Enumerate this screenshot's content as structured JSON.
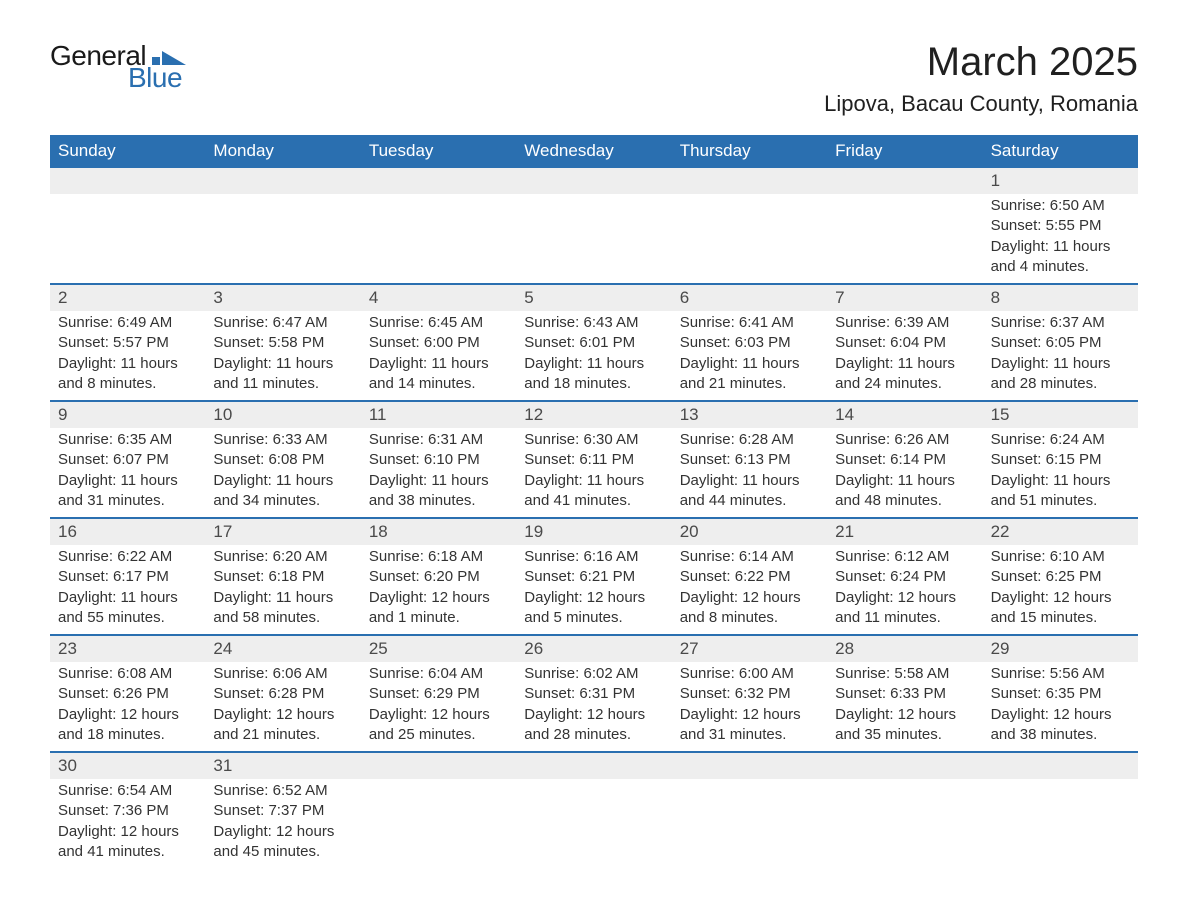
{
  "brand": {
    "top": "General",
    "bottom": "Blue",
    "shape_color": "#2a6fb0"
  },
  "title": "March 2025",
  "location": "Lipova, Bacau County, Romania",
  "colors": {
    "header_bg": "#2a6fb0",
    "header_text": "#ffffff",
    "daynum_bg": "#eeeeee",
    "row_border": "#2a6fb0",
    "body_text": "#333333",
    "page_bg": "#ffffff"
  },
  "weekdays": [
    "Sunday",
    "Monday",
    "Tuesday",
    "Wednesday",
    "Thursday",
    "Friday",
    "Saturday"
  ],
  "weeks": [
    [
      null,
      null,
      null,
      null,
      null,
      null,
      {
        "n": "1",
        "sunrise": "Sunrise: 6:50 AM",
        "sunset": "Sunset: 5:55 PM",
        "daylight1": "Daylight: 11 hours",
        "daylight2": "and 4 minutes."
      }
    ],
    [
      {
        "n": "2",
        "sunrise": "Sunrise: 6:49 AM",
        "sunset": "Sunset: 5:57 PM",
        "daylight1": "Daylight: 11 hours",
        "daylight2": "and 8 minutes."
      },
      {
        "n": "3",
        "sunrise": "Sunrise: 6:47 AM",
        "sunset": "Sunset: 5:58 PM",
        "daylight1": "Daylight: 11 hours",
        "daylight2": "and 11 minutes."
      },
      {
        "n": "4",
        "sunrise": "Sunrise: 6:45 AM",
        "sunset": "Sunset: 6:00 PM",
        "daylight1": "Daylight: 11 hours",
        "daylight2": "and 14 minutes."
      },
      {
        "n": "5",
        "sunrise": "Sunrise: 6:43 AM",
        "sunset": "Sunset: 6:01 PM",
        "daylight1": "Daylight: 11 hours",
        "daylight2": "and 18 minutes."
      },
      {
        "n": "6",
        "sunrise": "Sunrise: 6:41 AM",
        "sunset": "Sunset: 6:03 PM",
        "daylight1": "Daylight: 11 hours",
        "daylight2": "and 21 minutes."
      },
      {
        "n": "7",
        "sunrise": "Sunrise: 6:39 AM",
        "sunset": "Sunset: 6:04 PM",
        "daylight1": "Daylight: 11 hours",
        "daylight2": "and 24 minutes."
      },
      {
        "n": "8",
        "sunrise": "Sunrise: 6:37 AM",
        "sunset": "Sunset: 6:05 PM",
        "daylight1": "Daylight: 11 hours",
        "daylight2": "and 28 minutes."
      }
    ],
    [
      {
        "n": "9",
        "sunrise": "Sunrise: 6:35 AM",
        "sunset": "Sunset: 6:07 PM",
        "daylight1": "Daylight: 11 hours",
        "daylight2": "and 31 minutes."
      },
      {
        "n": "10",
        "sunrise": "Sunrise: 6:33 AM",
        "sunset": "Sunset: 6:08 PM",
        "daylight1": "Daylight: 11 hours",
        "daylight2": "and 34 minutes."
      },
      {
        "n": "11",
        "sunrise": "Sunrise: 6:31 AM",
        "sunset": "Sunset: 6:10 PM",
        "daylight1": "Daylight: 11 hours",
        "daylight2": "and 38 minutes."
      },
      {
        "n": "12",
        "sunrise": "Sunrise: 6:30 AM",
        "sunset": "Sunset: 6:11 PM",
        "daylight1": "Daylight: 11 hours",
        "daylight2": "and 41 minutes."
      },
      {
        "n": "13",
        "sunrise": "Sunrise: 6:28 AM",
        "sunset": "Sunset: 6:13 PM",
        "daylight1": "Daylight: 11 hours",
        "daylight2": "and 44 minutes."
      },
      {
        "n": "14",
        "sunrise": "Sunrise: 6:26 AM",
        "sunset": "Sunset: 6:14 PM",
        "daylight1": "Daylight: 11 hours",
        "daylight2": "and 48 minutes."
      },
      {
        "n": "15",
        "sunrise": "Sunrise: 6:24 AM",
        "sunset": "Sunset: 6:15 PM",
        "daylight1": "Daylight: 11 hours",
        "daylight2": "and 51 minutes."
      }
    ],
    [
      {
        "n": "16",
        "sunrise": "Sunrise: 6:22 AM",
        "sunset": "Sunset: 6:17 PM",
        "daylight1": "Daylight: 11 hours",
        "daylight2": "and 55 minutes."
      },
      {
        "n": "17",
        "sunrise": "Sunrise: 6:20 AM",
        "sunset": "Sunset: 6:18 PM",
        "daylight1": "Daylight: 11 hours",
        "daylight2": "and 58 minutes."
      },
      {
        "n": "18",
        "sunrise": "Sunrise: 6:18 AM",
        "sunset": "Sunset: 6:20 PM",
        "daylight1": "Daylight: 12 hours",
        "daylight2": "and 1 minute."
      },
      {
        "n": "19",
        "sunrise": "Sunrise: 6:16 AM",
        "sunset": "Sunset: 6:21 PM",
        "daylight1": "Daylight: 12 hours",
        "daylight2": "and 5 minutes."
      },
      {
        "n": "20",
        "sunrise": "Sunrise: 6:14 AM",
        "sunset": "Sunset: 6:22 PM",
        "daylight1": "Daylight: 12 hours",
        "daylight2": "and 8 minutes."
      },
      {
        "n": "21",
        "sunrise": "Sunrise: 6:12 AM",
        "sunset": "Sunset: 6:24 PM",
        "daylight1": "Daylight: 12 hours",
        "daylight2": "and 11 minutes."
      },
      {
        "n": "22",
        "sunrise": "Sunrise: 6:10 AM",
        "sunset": "Sunset: 6:25 PM",
        "daylight1": "Daylight: 12 hours",
        "daylight2": "and 15 minutes."
      }
    ],
    [
      {
        "n": "23",
        "sunrise": "Sunrise: 6:08 AM",
        "sunset": "Sunset: 6:26 PM",
        "daylight1": "Daylight: 12 hours",
        "daylight2": "and 18 minutes."
      },
      {
        "n": "24",
        "sunrise": "Sunrise: 6:06 AM",
        "sunset": "Sunset: 6:28 PM",
        "daylight1": "Daylight: 12 hours",
        "daylight2": "and 21 minutes."
      },
      {
        "n": "25",
        "sunrise": "Sunrise: 6:04 AM",
        "sunset": "Sunset: 6:29 PM",
        "daylight1": "Daylight: 12 hours",
        "daylight2": "and 25 minutes."
      },
      {
        "n": "26",
        "sunrise": "Sunrise: 6:02 AM",
        "sunset": "Sunset: 6:31 PM",
        "daylight1": "Daylight: 12 hours",
        "daylight2": "and 28 minutes."
      },
      {
        "n": "27",
        "sunrise": "Sunrise: 6:00 AM",
        "sunset": "Sunset: 6:32 PM",
        "daylight1": "Daylight: 12 hours",
        "daylight2": "and 31 minutes."
      },
      {
        "n": "28",
        "sunrise": "Sunrise: 5:58 AM",
        "sunset": "Sunset: 6:33 PM",
        "daylight1": "Daylight: 12 hours",
        "daylight2": "and 35 minutes."
      },
      {
        "n": "29",
        "sunrise": "Sunrise: 5:56 AM",
        "sunset": "Sunset: 6:35 PM",
        "daylight1": "Daylight: 12 hours",
        "daylight2": "and 38 minutes."
      }
    ],
    [
      {
        "n": "30",
        "sunrise": "Sunrise: 6:54 AM",
        "sunset": "Sunset: 7:36 PM",
        "daylight1": "Daylight: 12 hours",
        "daylight2": "and 41 minutes."
      },
      {
        "n": "31",
        "sunrise": "Sunrise: 6:52 AM",
        "sunset": "Sunset: 7:37 PM",
        "daylight1": "Daylight: 12 hours",
        "daylight2": "and 45 minutes."
      },
      null,
      null,
      null,
      null,
      null
    ]
  ]
}
